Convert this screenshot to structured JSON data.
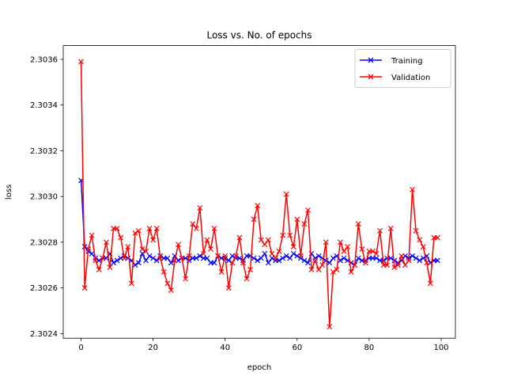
{
  "chart_data": {
    "type": "line",
    "title": "Loss vs. No. of epochs",
    "xlabel": "epoch",
    "ylabel": "loss",
    "xlim": [
      -4.95,
      103.95
    ],
    "ylim": [
      2.30238,
      2.30366
    ],
    "xticks": [
      0,
      20,
      40,
      60,
      80,
      100
    ],
    "yticks": [
      2.3024,
      2.3026,
      2.3028,
      2.303,
      2.3032,
      2.3034,
      2.3036
    ],
    "ytick_labels": [
      "2.3024",
      "2.3026",
      "2.3028",
      "2.3030",
      "2.3032",
      "2.3034",
      "2.3036"
    ],
    "grid": false,
    "legend_position": "top-right",
    "series": [
      {
        "name": "Training",
        "color": "#0000ff",
        "marker": "x",
        "values": [
          2.30307,
          2.30278,
          2.30276,
          2.30275,
          2.30273,
          2.30272,
          2.30273,
          2.30273,
          2.30275,
          2.30271,
          2.30272,
          2.30273,
          2.30274,
          2.30273,
          2.30272,
          2.3027,
          2.30271,
          2.30275,
          2.30272,
          2.30274,
          2.30273,
          2.30272,
          2.30274,
          2.30273,
          2.30273,
          2.30271,
          2.30274,
          2.30272,
          2.30273,
          2.30273,
          2.30272,
          2.30273,
          2.30273,
          2.30274,
          2.30273,
          2.30273,
          2.30271,
          2.30271,
          2.30274,
          2.30273,
          2.30273,
          2.30272,
          2.30274,
          2.30273,
          2.30273,
          2.30272,
          2.30274,
          2.30274,
          2.30273,
          2.30272,
          2.30273,
          2.30275,
          2.30271,
          2.30273,
          2.30272,
          2.30272,
          2.30273,
          2.30274,
          2.30273,
          2.30275,
          2.30274,
          2.30273,
          2.30272,
          2.30271,
          2.30275,
          2.30273,
          2.30274,
          2.30273,
          2.30272,
          2.30271,
          2.30273,
          2.30274,
          2.30272,
          2.30273,
          2.30272,
          2.30271,
          2.3027,
          2.30273,
          2.30272,
          2.30272,
          2.30273,
          2.30273,
          2.30273,
          2.30272,
          2.30272,
          2.30273,
          2.30273,
          2.30272,
          2.30271,
          2.30272,
          2.30274,
          2.30273,
          2.30274,
          2.30273,
          2.30272,
          2.30273,
          2.30274,
          2.30271,
          2.30272,
          2.30272
        ]
      },
      {
        "name": "Validation",
        "color": "#ff0000",
        "marker": "x",
        "values": [
          2.30359,
          2.3026,
          2.30277,
          2.30283,
          2.30272,
          2.30268,
          2.30273,
          2.3028,
          2.30269,
          2.30286,
          2.30286,
          2.30282,
          2.30273,
          2.30278,
          2.30262,
          2.30284,
          2.30285,
          2.30277,
          2.30276,
          2.30286,
          2.30281,
          2.30286,
          2.30273,
          2.30267,
          2.30262,
          2.30259,
          2.30272,
          2.30279,
          2.30273,
          2.30264,
          2.30274,
          2.30288,
          2.30286,
          2.30295,
          2.30275,
          2.30281,
          2.30277,
          2.30286,
          2.30274,
          2.30267,
          2.30274,
          2.3026,
          2.30271,
          2.30274,
          2.30282,
          2.30271,
          2.30264,
          2.30268,
          2.3029,
          2.30296,
          2.30281,
          2.30279,
          2.30281,
          2.30275,
          2.30273,
          2.30276,
          2.30283,
          2.30301,
          2.30283,
          2.30278,
          2.3029,
          2.30274,
          2.30288,
          2.30294,
          2.30268,
          2.30272,
          2.30268,
          2.3027,
          2.3028,
          2.30243,
          2.30267,
          2.30268,
          2.3028,
          2.30276,
          2.30278,
          2.30267,
          2.3027,
          2.30288,
          2.30277,
          2.30271,
          2.30276,
          2.30276,
          2.30275,
          2.30285,
          2.3027,
          2.3027,
          2.30286,
          2.30269,
          2.3027,
          2.30274,
          2.3027,
          2.30272,
          2.30303,
          2.30285,
          2.30281,
          2.30278,
          2.30271,
          2.30262,
          2.30282,
          2.30282
        ]
      }
    ]
  }
}
